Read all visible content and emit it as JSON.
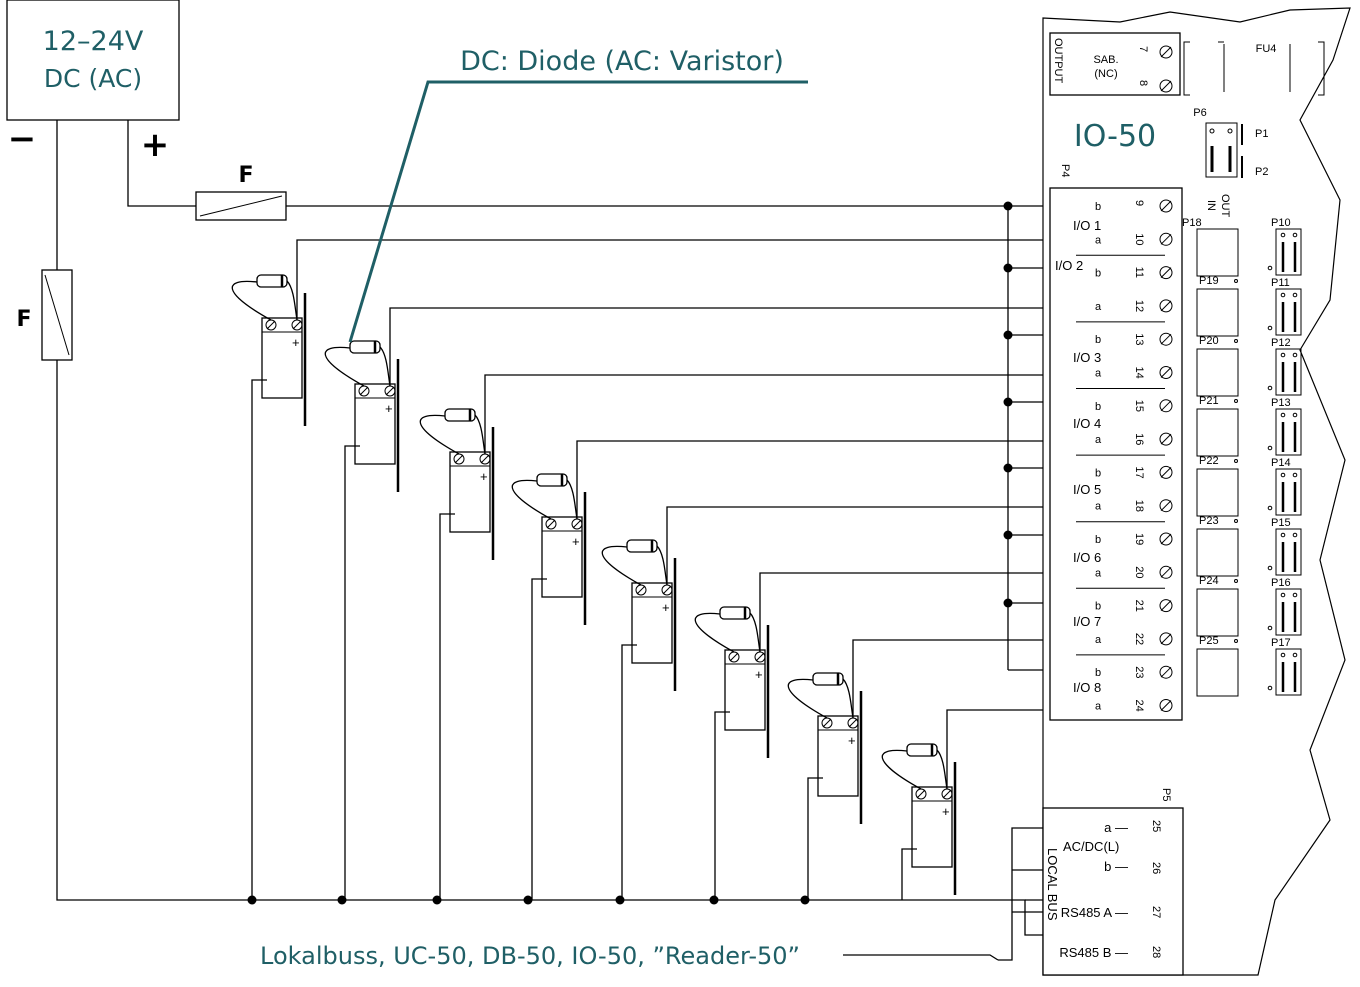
{
  "supply": {
    "line1": "12–24V",
    "line2": "DC (AC)",
    "minus": "−",
    "plus": "+",
    "fuse": "F"
  },
  "callout": "DC: Diode (AC: Varistor)",
  "module": {
    "title": "IO-50",
    "output": "OUTPUT",
    "sab": "SAB.",
    "nc": "(NC)",
    "fu4": "FU4",
    "p6": "P6",
    "p1": "P1",
    "p2": "P2",
    "p4": "P4",
    "p5": "P5",
    "in": "IN",
    "out": "OUT",
    "p18": "P18"
  },
  "terminals": [
    {
      "n": "7"
    },
    {
      "n": "8"
    }
  ],
  "io_rows": [
    {
      "n": "9",
      "sub": "b"
    },
    {
      "n": "10",
      "sub": "a"
    },
    {
      "n": "11",
      "sub": "b"
    },
    {
      "n": "12",
      "sub": "a"
    },
    {
      "n": "13",
      "sub": "b"
    },
    {
      "n": "14",
      "sub": "a"
    },
    {
      "n": "15",
      "sub": "b"
    },
    {
      "n": "16",
      "sub": "a"
    },
    {
      "n": "17",
      "sub": "b"
    },
    {
      "n": "18",
      "sub": "a"
    },
    {
      "n": "19",
      "sub": "b"
    },
    {
      "n": "20",
      "sub": "a"
    },
    {
      "n": "21",
      "sub": "b"
    },
    {
      "n": "22",
      "sub": "a"
    },
    {
      "n": "23",
      "sub": "b"
    },
    {
      "n": "24",
      "sub": "a"
    }
  ],
  "io_names": [
    "I/O 1",
    "I/O 2",
    "I/O 3",
    "I/O 4",
    "I/O 5",
    "I/O 6",
    "I/O 7",
    "I/O 8"
  ],
  "p_left": [
    "P19",
    "P20",
    "P21",
    "P22",
    "P23",
    "P24",
    "P25"
  ],
  "p_right": [
    "P10",
    "P11",
    "P12",
    "P13",
    "P14",
    "P15",
    "P16",
    "P17"
  ],
  "bus": {
    "a": "a —",
    "acdc": "AC/DC(L)",
    "b": "b —",
    "rsa": "RS485 A —",
    "rsb": "RS485 B —",
    "local": "LOCAL BUS",
    "t25": "25",
    "t26": "26",
    "t27": "27",
    "t28": "28"
  },
  "bottom_label": "Lokalbuss, UC-50, DB-50, IO-50, ”Reader-50”",
  "lock_plus": "+"
}
